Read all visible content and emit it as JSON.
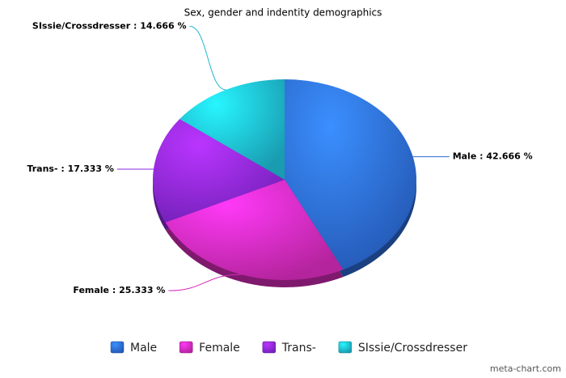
{
  "chart_data": {
    "type": "pie",
    "title": "Sex, gender and indentity demographics",
    "categories": [
      "Male",
      "Female",
      "Trans-",
      "SIssie/Crossdresser"
    ],
    "values": [
      42.666,
      25.333,
      17.333,
      14.666
    ],
    "value_labels": [
      "Male : 42.666 %",
      "Female : 25.333 %",
      "Trans- : 17.333 %",
      "SIssie/Crossdresser : 14.666 %"
    ],
    "colors": [
      "#2c6ad6",
      "#d42ab8",
      "#8a27dc",
      "#1db6cf"
    ],
    "legend": "bottom",
    "credit": "meta-chart.com"
  }
}
